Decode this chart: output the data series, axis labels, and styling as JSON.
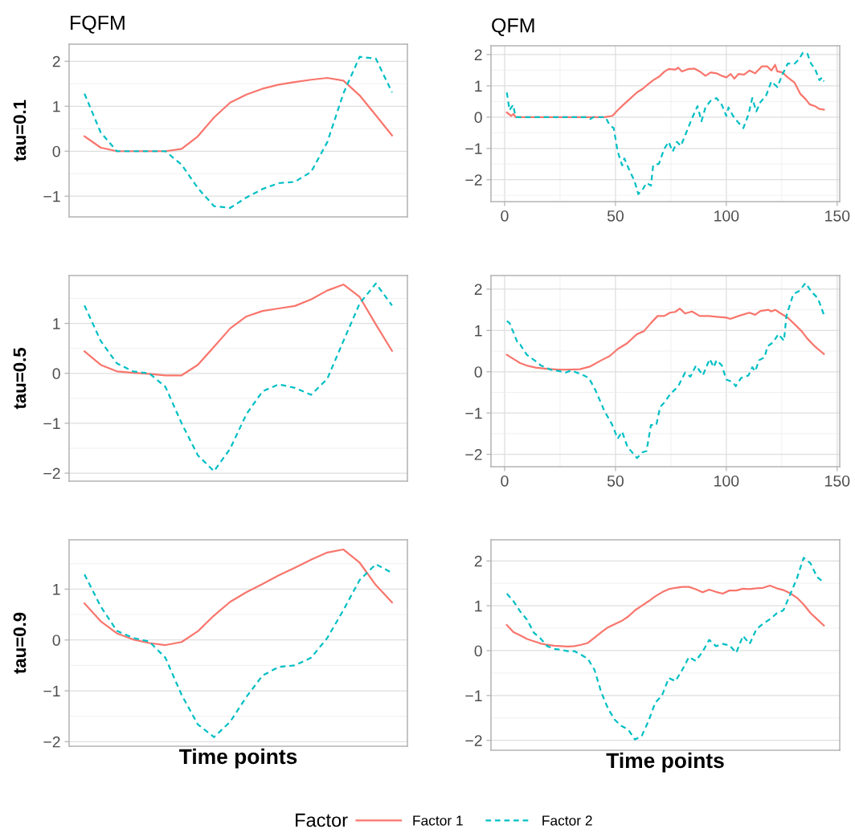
{
  "chart_data": [
    {
      "type": "line",
      "title": "FQFM",
      "ylabel": "tau=0.1",
      "categories": [
        null,
        null,
        null,
        null,
        null,
        null,
        null,
        null,
        null,
        null,
        null,
        null,
        null,
        null,
        null,
        null,
        null,
        null,
        null,
        null
      ],
      "ylim": [
        -1.46,
        2.38
      ],
      "yticks": [
        -1,
        0,
        1,
        2
      ],
      "tick_labels": "y",
      "grid": "y",
      "legend": "bottom",
      "legend_title": "Factor",
      "series": [
        {
          "name": "Factor 1",
          "color": "#f8766d",
          "line_style": "solid",
          "values": [
            0.33,
            0.08,
            0,
            0,
            0,
            0,
            0.05,
            0.33,
            0.75,
            1.08,
            1.26,
            1.39,
            1.48,
            1.54,
            1.59,
            1.63,
            1.57,
            1.24,
            0.8,
            0.35
          ]
        },
        {
          "name": "Factor 2",
          "color": "#00bfc4",
          "line_style": "dashed",
          "values": [
            1.28,
            0.42,
            0,
            0,
            0,
            0,
            -0.3,
            -0.82,
            -1.22,
            -1.26,
            -1.03,
            -0.84,
            -0.71,
            -0.68,
            -0.46,
            0.2,
            1.29,
            2.1,
            2.06,
            1.31
          ]
        }
      ]
    },
    {
      "type": "line",
      "title": "QFM",
      "xlim": [
        -6.15,
        151.15
      ],
      "xticks": [
        0,
        50,
        100,
        150
      ],
      "ylim": [
        -2.7,
        2.28
      ],
      "yticks": [
        -2,
        -1,
        0,
        1,
        2
      ],
      "grid": true,
      "series": [
        {
          "color": "#f8766d",
          "line_style": "solid",
          "x": [
            1,
            3,
            4,
            5,
            45,
            48.6,
            51,
            53.5,
            56.6,
            59.7,
            62.2,
            64.7,
            67,
            69.6,
            72,
            74,
            77,
            78.3,
            80,
            83,
            85.7,
            88,
            90.6,
            93,
            95.6,
            98,
            100,
            102,
            103.6,
            105.5,
            108,
            110.4,
            113,
            116,
            118.5,
            120.3,
            122,
            123,
            125.3,
            127.7,
            130.8,
            133.3,
            135.8,
            137.6,
            140,
            142,
            144
          ],
          "values": [
            0.15,
            0.04,
            0.1,
            0,
            0,
            0.04,
            0.22,
            0.39,
            0.59,
            0.79,
            0.9,
            1.05,
            1.18,
            1.29,
            1.45,
            1.54,
            1.52,
            1.58,
            1.46,
            1.54,
            1.55,
            1.46,
            1.32,
            1.43,
            1.4,
            1.32,
            1.27,
            1.38,
            1.23,
            1.38,
            1.36,
            1.49,
            1.4,
            1.62,
            1.62,
            1.49,
            1.67,
            1.46,
            1.43,
            1.27,
            1.1,
            0.75,
            0.57,
            0.41,
            0.35,
            0.26,
            0.24
          ]
        },
        {
          "color": "#00bfc4",
          "line_style": "dashed",
          "x": [
            1,
            2.2,
            3.8,
            5,
            37.5,
            38.7,
            40,
            45.5,
            47.4,
            49.2,
            51,
            53,
            54,
            56.6,
            58.5,
            60.3,
            62.2,
            64,
            66,
            67,
            69.6,
            72,
            74,
            75.8,
            77.7,
            79.5,
            82,
            85,
            87,
            88.8,
            90.6,
            93,
            95.6,
            98,
            100,
            101,
            103,
            105.5,
            107.7,
            110,
            111.7,
            113.5,
            115.4,
            118,
            120.3,
            123,
            125.3,
            127.7,
            130.8,
            132.7,
            134.5,
            136.6,
            138.2,
            140,
            142,
            143.2,
            144
          ],
          "values": [
            0.79,
            0.22,
            0.39,
            0,
            0,
            -0.06,
            0,
            0,
            -0.26,
            -0.35,
            -1.1,
            -1.54,
            -1.32,
            -1.75,
            -2.02,
            -2.46,
            -2.32,
            -2.1,
            -2.19,
            -1.54,
            -1.49,
            -1.01,
            -0.79,
            -1.1,
            -0.79,
            -0.92,
            -0.48,
            0.04,
            0.35,
            -0.13,
            0.31,
            0.53,
            0.61,
            0.39,
            0.04,
            0.31,
            0.04,
            -0.18,
            -0.35,
            0.09,
            0.61,
            0.18,
            0.48,
            0.7,
            1.14,
            0.96,
            1.36,
            1.71,
            1.71,
            1.84,
            2.06,
            2.02,
            1.71,
            1.54,
            1.18,
            1.27,
            1.14
          ]
        }
      ]
    },
    {
      "type": "line",
      "ylabel": "tau=0.5",
      "categories": [
        null,
        null,
        null,
        null,
        null,
        null,
        null,
        null,
        null,
        null,
        null,
        null,
        null,
        null,
        null,
        null,
        null,
        null,
        null,
        null
      ],
      "ylim": [
        -2.16,
        1.96
      ],
      "yticks": [
        -2,
        -1,
        0,
        1
      ],
      "tick_labels": "y",
      "grid": "y",
      "series": [
        {
          "color": "#f8766d",
          "line_style": "solid",
          "values": [
            0.44,
            0.17,
            0.04,
            0.01,
            -0.01,
            -0.04,
            -0.04,
            0.17,
            0.53,
            0.9,
            1.14,
            1.25,
            1.3,
            1.35,
            1.48,
            1.66,
            1.78,
            1.53,
            0.98,
            0.45
          ]
        },
        {
          "color": "#00bfc4",
          "line_style": "dashed",
          "values": [
            1.36,
            0.65,
            0.2,
            0.04,
            0,
            -0.27,
            -1.0,
            -1.64,
            -1.96,
            -1.51,
            -0.82,
            -0.36,
            -0.22,
            -0.29,
            -0.43,
            -0.11,
            0.65,
            1.4,
            1.8,
            1.36
          ]
        }
      ]
    },
    {
      "type": "line",
      "xlim": [
        -6.15,
        151.15
      ],
      "xticks": [
        0,
        50,
        100,
        150
      ],
      "ylim": [
        -2.3,
        2.33
      ],
      "yticks": [
        -2,
        -1,
        0,
        1,
        2
      ],
      "grid": true,
      "series": [
        {
          "color": "#f8766d",
          "line_style": "solid",
          "x": [
            1,
            4,
            7,
            10,
            14,
            19,
            24,
            29,
            34,
            38.7,
            43.7,
            47.4,
            51,
            55,
            59.7,
            62.8,
            66,
            69,
            72,
            74.6,
            77,
            79,
            81.4,
            84.5,
            88,
            92,
            95.6,
            100,
            101.8,
            105.5,
            110.4,
            113,
            115.4,
            119,
            120.3,
            122,
            124.6,
            127.7,
            130.8,
            134,
            136.4,
            140,
            144
          ],
          "values": [
            0.41,
            0.31,
            0.21,
            0.15,
            0.1,
            0.07,
            0.05,
            0.05,
            0.06,
            0.13,
            0.28,
            0.38,
            0.55,
            0.68,
            0.91,
            0.98,
            1.18,
            1.35,
            1.35,
            1.43,
            1.45,
            1.53,
            1.41,
            1.46,
            1.35,
            1.35,
            1.33,
            1.31,
            1.28,
            1.35,
            1.43,
            1.38,
            1.47,
            1.5,
            1.46,
            1.5,
            1.41,
            1.31,
            1.15,
            0.98,
            0.81,
            0.61,
            0.43
          ]
        },
        {
          "color": "#00bfc4",
          "line_style": "dashed",
          "x": [
            1,
            2.2,
            4,
            6,
            7,
            10,
            13.4,
            16.4,
            20.8,
            25,
            27.6,
            30,
            35,
            38,
            41,
            45,
            48.6,
            51,
            53,
            55.4,
            59.7,
            62.2,
            64,
            66,
            68.4,
            70.2,
            72,
            74.6,
            78.3,
            81.4,
            83.8,
            86.3,
            89.4,
            92.5,
            94.3,
            95.6,
            98,
            100,
            103,
            104.2,
            106.7,
            110,
            111.7,
            113,
            114.8,
            117.3,
            118.5,
            121,
            123.5,
            126,
            127.1,
            130.2,
            132.7,
            135.8,
            138.2,
            141.3,
            144
          ],
          "values": [
            1.23,
            1.18,
            0.95,
            0.68,
            0.66,
            0.41,
            0.28,
            0.15,
            0.05,
            0.01,
            -0.02,
            0.03,
            -0.07,
            -0.15,
            -0.45,
            -0.95,
            -1.29,
            -1.62,
            -1.45,
            -1.82,
            -2.09,
            -1.95,
            -1.92,
            -1.29,
            -1.29,
            -0.85,
            -0.75,
            -0.55,
            -0.35,
            -0.02,
            -0.12,
            0.15,
            -0.09,
            0.31,
            0.11,
            0.28,
            0.15,
            -0.19,
            -0.25,
            -0.35,
            -0.15,
            -0.09,
            0.11,
            0.01,
            0.28,
            0.35,
            0.61,
            0.71,
            0.91,
            0.75,
            1.35,
            1.88,
            1.95,
            2.15,
            1.95,
            1.78,
            1.38
          ]
        }
      ]
    },
    {
      "type": "line",
      "ylabel": "tau=0.9",
      "xlabel": "Time points",
      "categories": [
        null,
        null,
        null,
        null,
        null,
        null,
        null,
        null,
        null,
        null,
        null,
        null,
        null,
        null,
        null,
        null,
        null,
        null,
        null,
        null
      ],
      "ylim": [
        -2.09,
        1.97
      ],
      "yticks": [
        -2,
        -1,
        0,
        1
      ],
      "tick_labels": "y",
      "grid": "y",
      "series": [
        {
          "color": "#f8766d",
          "line_style": "solid",
          "values": [
            0.72,
            0.37,
            0.13,
            0.01,
            -0.06,
            -0.1,
            -0.04,
            0.17,
            0.48,
            0.75,
            0.94,
            1.1,
            1.27,
            1.42,
            1.58,
            1.72,
            1.78,
            1.52,
            1.08,
            0.74
          ]
        },
        {
          "color": "#00bfc4",
          "line_style": "dashed",
          "values": [
            1.29,
            0.66,
            0.18,
            0.04,
            -0.03,
            -0.35,
            -1.08,
            -1.66,
            -1.91,
            -1.61,
            -1.12,
            -0.7,
            -0.53,
            -0.5,
            -0.35,
            0.04,
            0.59,
            1.18,
            1.49,
            1.32
          ]
        }
      ]
    },
    {
      "type": "line",
      "xlabel": "Time points",
      "categories": [
        null,
        null,
        null,
        null,
        null,
        null,
        null,
        null,
        null,
        null,
        null,
        null,
        null,
        null,
        null,
        null,
        null,
        null,
        null,
        null,
        null,
        null,
        null,
        null,
        null,
        null,
        null,
        null,
        null,
        null,
        null,
        null,
        null,
        null,
        null,
        null,
        null,
        null,
        null,
        null,
        null,
        null,
        null,
        null,
        null,
        null,
        null,
        null
      ],
      "ylim": [
        -2.22,
        2.47
      ],
      "yticks": [
        -2,
        -1,
        0,
        1,
        2
      ],
      "tick_labels": "y",
      "grid": "y",
      "series": [
        {
          "color": "#f8766d",
          "line_style": "solid",
          "values": [
            0.57,
            0.41,
            0.34,
            0.26,
            0.21,
            0.16,
            0.13,
            0.11,
            0.1,
            0.09,
            0.1,
            0.13,
            0.17,
            0.29,
            0.41,
            0.52,
            0.59,
            0.66,
            0.76,
            0.9,
            1.0,
            1.1,
            1.21,
            1.3,
            1.37,
            1.4,
            1.42,
            1.42,
            1.37,
            1.3,
            1.36,
            1.31,
            1.27,
            1.34,
            1.34,
            1.38,
            1.37,
            1.39,
            1.4,
            1.45,
            1.39,
            1.35,
            1.28,
            1.18,
            1.03,
            0.84,
            0.7,
            0.56
          ]
        },
        {
          "color": "#00bfc4",
          "line_style": "dashed",
          "values": [
            1.27,
            1.1,
            0.87,
            0.69,
            0.4,
            0.27,
            0.1,
            0.04,
            0.02,
            -0.01,
            -0.01,
            -0.09,
            -0.18,
            -0.43,
            -0.93,
            -1.29,
            -1.54,
            -1.68,
            -1.76,
            -1.98,
            -1.9,
            -1.57,
            -1.16,
            -1.0,
            -0.61,
            -0.68,
            -0.43,
            -0.14,
            -0.23,
            -0.03,
            0.24,
            0.1,
            0.15,
            0.12,
            -0.05,
            0.33,
            0.15,
            0.48,
            0.6,
            0.7,
            0.83,
            0.9,
            1.25,
            1.61,
            2.07,
            1.95,
            1.64,
            1.52
          ]
        }
      ]
    }
  ]
}
